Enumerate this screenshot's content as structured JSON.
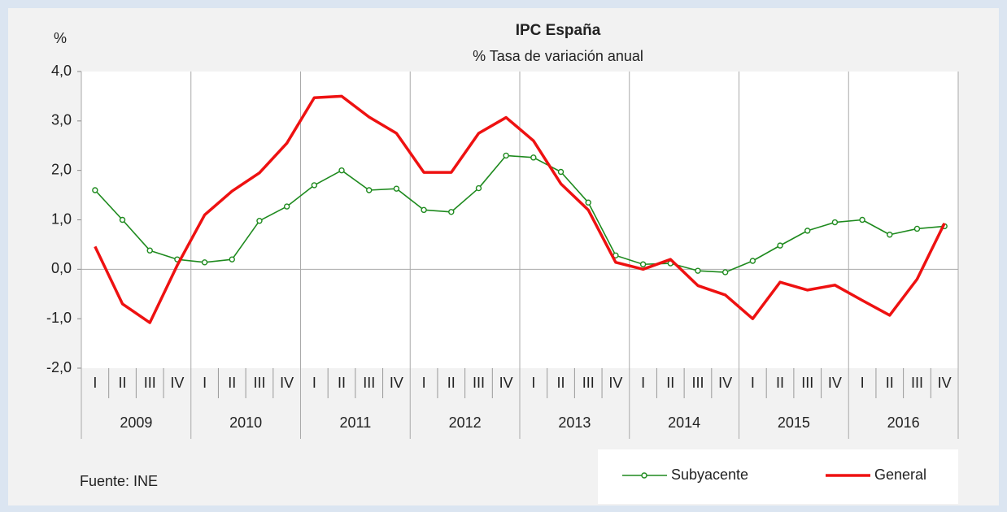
{
  "chart_data": {
    "type": "line",
    "title": "IPC España",
    "subtitle": "% Tasa de variación anual",
    "y_label": "%",
    "source": "Fuente: INE",
    "categories": [
      "I",
      "II",
      "III",
      "IV",
      "I",
      "II",
      "III",
      "IV",
      "I",
      "II",
      "III",
      "IV",
      "I",
      "II",
      "III",
      "IV",
      "I",
      "II",
      "III",
      "IV",
      "I",
      "II",
      "III",
      "IV",
      "I",
      "II",
      "III",
      "IV",
      "I",
      "II",
      "III",
      "IV"
    ],
    "groups": [
      "2009",
      "2010",
      "2011",
      "2012",
      "2013",
      "2014",
      "2015",
      "2016"
    ],
    "ylim": [
      -2,
      4
    ],
    "yticks": [
      {
        "value": -2,
        "label": "-2,0"
      },
      {
        "value": -1,
        "label": "-1,0"
      },
      {
        "value": 0,
        "label": "0,0"
      },
      {
        "value": 1,
        "label": "1,0"
      },
      {
        "value": 2,
        "label": "2,0"
      },
      {
        "value": 3,
        "label": "3,0"
      },
      {
        "value": 4,
        "label": "4,0"
      }
    ],
    "series": [
      {
        "name": "Subyacente",
        "color": "#1e8a1e",
        "markers": true,
        "values": [
          1.6,
          1.0,
          0.38,
          0.2,
          0.14,
          0.2,
          0.98,
          1.27,
          1.7,
          2.0,
          1.6,
          1.63,
          1.2,
          1.16,
          1.64,
          2.3,
          2.26,
          1.97,
          1.35,
          0.28,
          0.1,
          0.12,
          -0.03,
          -0.06,
          0.17,
          0.48,
          0.78,
          0.95,
          1.0,
          0.7,
          0.82,
          0.87
        ]
      },
      {
        "name": "General",
        "color": "#ee1111",
        "markers": false,
        "values": [
          0.46,
          -0.7,
          -1.08,
          0.08,
          1.1,
          1.58,
          1.95,
          2.55,
          3.47,
          3.5,
          3.08,
          2.75,
          1.96,
          1.96,
          2.75,
          3.07,
          2.6,
          1.73,
          1.2,
          0.14,
          0.0,
          0.2,
          -0.33,
          -0.52,
          -1.0,
          -0.26,
          -0.42,
          -0.32,
          -0.63,
          -0.93,
          -0.2,
          0.93
        ]
      }
    ]
  }
}
